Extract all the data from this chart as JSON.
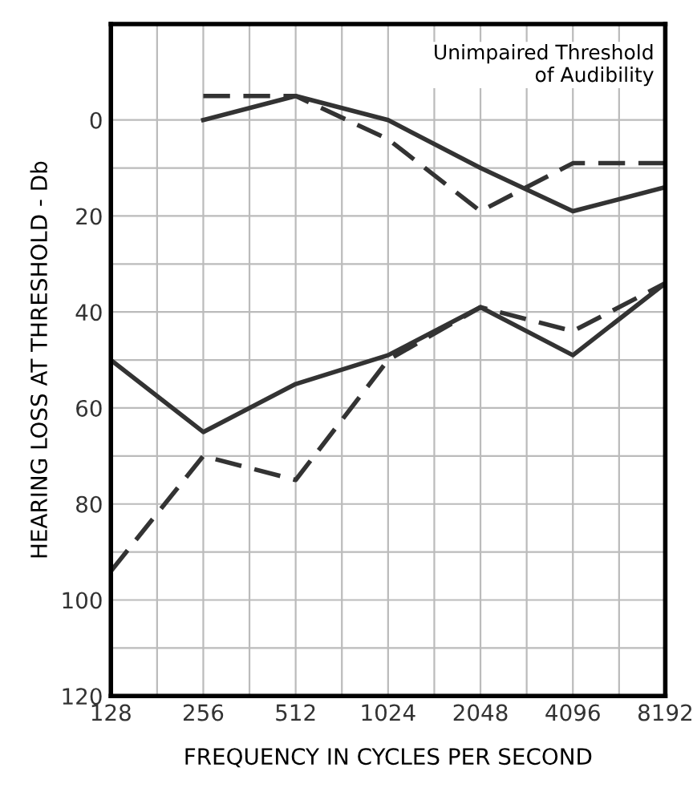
{
  "chart_data": {
    "type": "line",
    "xlabel": "FREQUENCY IN CYCLES PER SECOND",
    "ylabel": "HEARING LOSS AT THRESHOLD - Db",
    "categories": [
      "128",
      "256",
      "512",
      "1024",
      "2048",
      "4096",
      "8192"
    ],
    "series": [
      {
        "color": "#333333",
        "line_style": "solid",
        "values": [
          null,
          0,
          -5,
          0,
          10,
          19,
          14
        ]
      },
      {
        "color": "#333333",
        "line_style": "dashed",
        "values": [
          null,
          -5,
          -5,
          4,
          19,
          9,
          9
        ]
      },
      {
        "color": "#333333",
        "line_style": "solid",
        "values": [
          50,
          65,
          55,
          49,
          39,
          49,
          34
        ]
      },
      {
        "color": "#333333",
        "line_style": "dashed",
        "values": [
          94,
          70,
          75,
          50,
          39,
          44,
          34
        ]
      }
    ],
    "ylim": [
      120,
      -20
    ],
    "yticks": [
      0,
      {
        "value": 10,
        "label": null
      },
      20,
      {
        "value": 30,
        "label": null
      },
      40,
      {
        "value": 50,
        "label": null
      },
      60,
      {
        "value": 70,
        "label": null
      },
      80,
      {
        "value": 90,
        "label": null
      },
      100,
      {
        "value": 110,
        "label": null
      },
      120
    ],
    "grid": true,
    "legend": false,
    "marker": "none",
    "annotations": [
      "Unimpaired Threshold\nof Audibility"
    ]
  }
}
